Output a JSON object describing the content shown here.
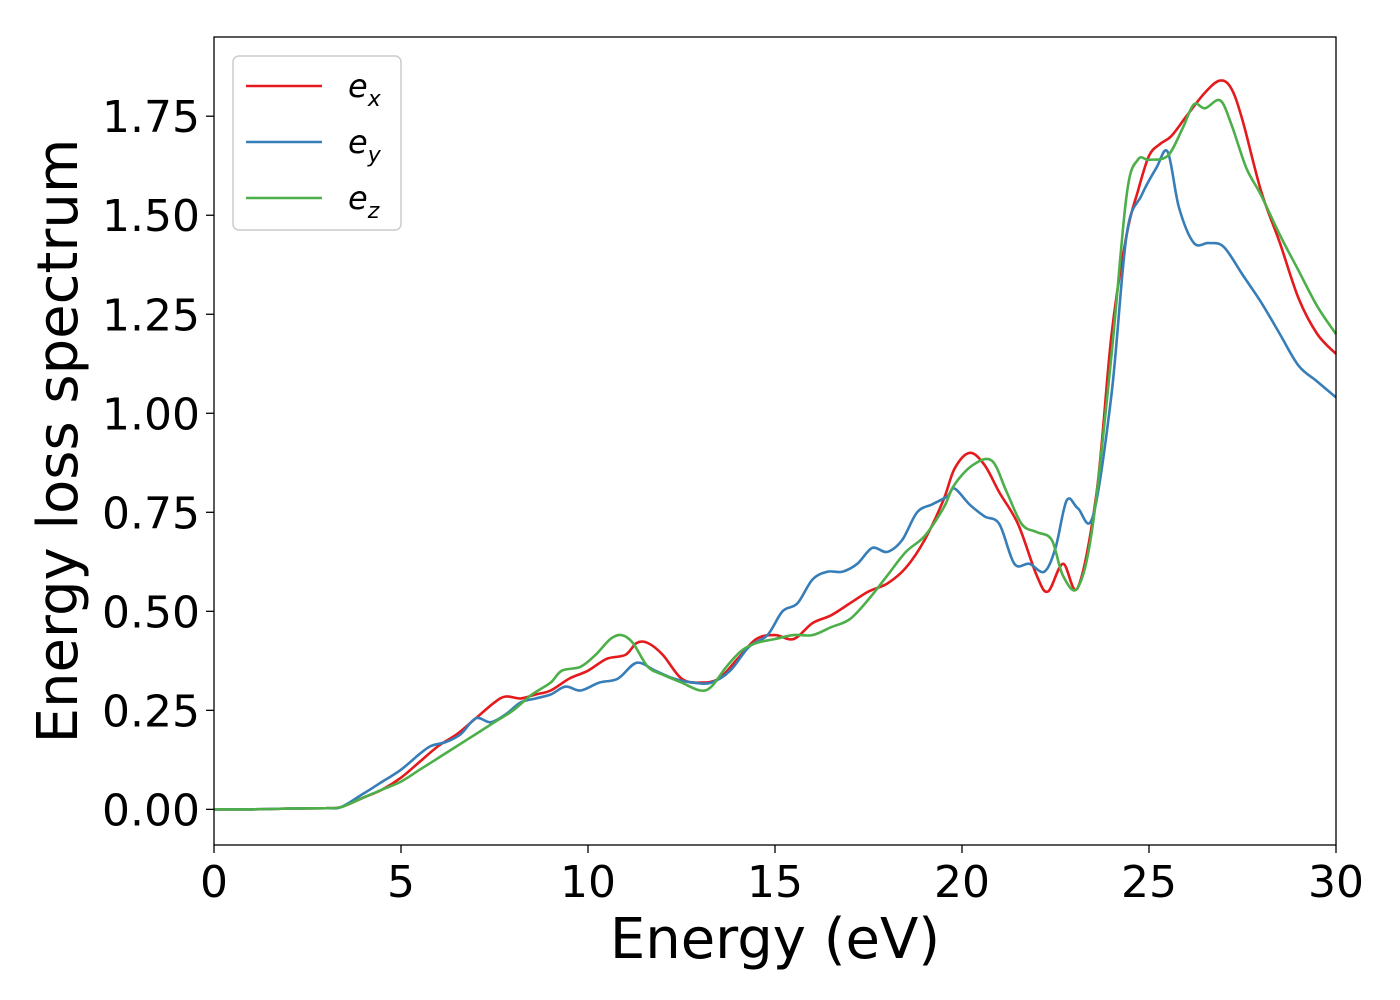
{
  "chart_data": {
    "type": "line",
    "title": "",
    "xlabel": "Energy (eV)",
    "ylabel": "Energy loss spectrum",
    "xlim": [
      0,
      30
    ],
    "ylim": [
      -0.09,
      1.95
    ],
    "xticks": [
      "0",
      "5",
      "10",
      "15",
      "20",
      "25",
      "30"
    ],
    "yticks": [
      "0.00",
      "0.25",
      "0.50",
      "0.75",
      "1.00",
      "1.25",
      "1.50",
      "1.75"
    ],
    "grid": false,
    "legend_position": "upper left",
    "series": [
      {
        "name": "e",
        "subscript": "x",
        "color": "#e41a1c",
        "x": [
          0,
          1,
          2,
          3,
          3.4,
          4,
          4.5,
          5,
          5.5,
          6,
          6.5,
          7,
          7.5,
          7.8,
          8.2,
          8.6,
          9,
          9.5,
          10,
          10.5,
          11,
          11.3,
          11.6,
          12,
          12.5,
          13,
          13.5,
          14,
          14.5,
          15,
          15.5,
          16,
          16.5,
          17,
          17.5,
          18,
          18.5,
          19,
          19.5,
          19.8,
          20.2,
          20.6,
          21,
          21.5,
          22,
          22.3,
          22.7,
          23.1,
          23.6,
          24,
          24.4,
          24.7,
          25,
          25.3,
          25.6,
          26,
          26.5,
          26.9,
          27.2,
          27.5,
          28,
          28.5,
          29,
          29.5,
          30
        ],
        "values": [
          0,
          0,
          0.002,
          0.003,
          0.006,
          0.03,
          0.05,
          0.08,
          0.12,
          0.16,
          0.19,
          0.23,
          0.27,
          0.285,
          0.28,
          0.29,
          0.3,
          0.33,
          0.35,
          0.38,
          0.39,
          0.42,
          0.42,
          0.39,
          0.33,
          0.32,
          0.33,
          0.38,
          0.43,
          0.44,
          0.43,
          0.47,
          0.49,
          0.52,
          0.55,
          0.57,
          0.61,
          0.68,
          0.78,
          0.86,
          0.9,
          0.87,
          0.8,
          0.72,
          0.59,
          0.55,
          0.62,
          0.56,
          0.8,
          1.2,
          1.45,
          1.56,
          1.65,
          1.68,
          1.7,
          1.75,
          1.81,
          1.84,
          1.82,
          1.74,
          1.56,
          1.43,
          1.29,
          1.2,
          1.15
        ]
      },
      {
        "name": "e",
        "subscript": "y",
        "color": "#377eb8",
        "x": [
          0,
          1,
          2,
          3,
          3.4,
          4,
          4.5,
          5,
          5.5,
          5.8,
          6.2,
          6.6,
          7,
          7.4,
          7.8,
          8.2,
          8.6,
          9,
          9.4,
          9.8,
          10.3,
          10.8,
          11.3,
          11.8,
          12.3,
          12.8,
          13.3,
          13.8,
          14.3,
          14.8,
          15.2,
          15.6,
          16,
          16.4,
          16.8,
          17.2,
          17.6,
          18,
          18.4,
          18.8,
          19.2,
          19.6,
          19.8,
          20.2,
          20.6,
          21,
          21.4,
          21.8,
          22.2,
          22.5,
          22.8,
          23.1,
          23.5,
          24,
          24.4,
          24.8,
          25.2,
          25.5,
          25.8,
          26.2,
          26.6,
          27,
          27.5,
          28,
          28.5,
          29,
          29.5,
          30
        ],
        "values": [
          0,
          0,
          0.002,
          0.003,
          0.006,
          0.04,
          0.07,
          0.1,
          0.14,
          0.16,
          0.17,
          0.19,
          0.23,
          0.22,
          0.24,
          0.27,
          0.28,
          0.29,
          0.31,
          0.3,
          0.32,
          0.33,
          0.37,
          0.35,
          0.33,
          0.32,
          0.32,
          0.35,
          0.41,
          0.44,
          0.5,
          0.52,
          0.58,
          0.6,
          0.6,
          0.62,
          0.66,
          0.65,
          0.68,
          0.75,
          0.77,
          0.79,
          0.81,
          0.77,
          0.74,
          0.72,
          0.62,
          0.62,
          0.6,
          0.66,
          0.78,
          0.76,
          0.74,
          1.05,
          1.45,
          1.55,
          1.62,
          1.66,
          1.52,
          1.43,
          1.43,
          1.42,
          1.35,
          1.28,
          1.2,
          1.12,
          1.08,
          1.04
        ]
      },
      {
        "name": "e",
        "subscript": "z",
        "color": "#4daf4a",
        "x": [
          0,
          1,
          2,
          3,
          3.4,
          4,
          4.5,
          5,
          5.5,
          6,
          6.5,
          7,
          7.5,
          8,
          8.5,
          9,
          9.3,
          9.8,
          10.2,
          10.6,
          10.9,
          11.2,
          11.6,
          12,
          12.5,
          13,
          13.3,
          13.7,
          14.1,
          14.5,
          15,
          15.5,
          16,
          16.5,
          17,
          17.5,
          18,
          18.5,
          19,
          19.5,
          19.8,
          20.3,
          20.8,
          21.2,
          21.6,
          22,
          22.4,
          22.7,
          23.1,
          23.5,
          24,
          24.4,
          24.7,
          25,
          25.5,
          25.9,
          26.2,
          26.5,
          26.9,
          27.2,
          27.6,
          28,
          28.5,
          29,
          29.5,
          30
        ],
        "values": [
          0,
          0,
          0.002,
          0.003,
          0.006,
          0.03,
          0.05,
          0.07,
          0.1,
          0.13,
          0.16,
          0.19,
          0.22,
          0.25,
          0.29,
          0.32,
          0.35,
          0.36,
          0.39,
          0.43,
          0.44,
          0.42,
          0.36,
          0.34,
          0.32,
          0.3,
          0.31,
          0.36,
          0.4,
          0.42,
          0.43,
          0.44,
          0.44,
          0.46,
          0.48,
          0.53,
          0.59,
          0.65,
          0.69,
          0.76,
          0.82,
          0.87,
          0.88,
          0.8,
          0.72,
          0.7,
          0.68,
          0.59,
          0.56,
          0.72,
          1.15,
          1.55,
          1.64,
          1.64,
          1.65,
          1.72,
          1.78,
          1.77,
          1.79,
          1.73,
          1.62,
          1.55,
          1.45,
          1.36,
          1.27,
          1.2
        ]
      }
    ]
  }
}
